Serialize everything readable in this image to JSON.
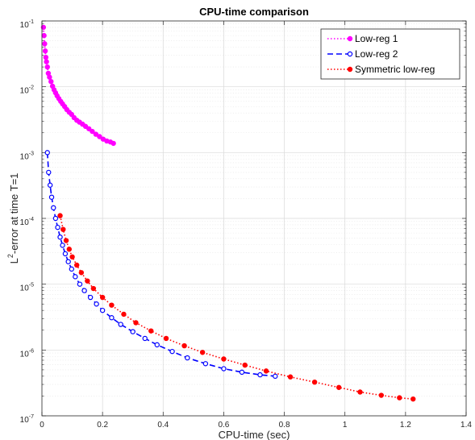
{
  "chart_data": {
    "type": "line",
    "title": "CPU-time comparison",
    "xlabel": "CPU-time (sec)",
    "ylabel_base": "L",
    "ylabel_sup": "2",
    "ylabel_rest": "-error at time T=1",
    "xlim": [
      0,
      1.4
    ],
    "ylim": [
      1e-07,
      0.1
    ],
    "yscale": "log",
    "grid": true,
    "legend_position": "top-right",
    "x_ticks": [
      "0",
      "0.2",
      "0.4",
      "0.6",
      "0.8",
      "1",
      "1.2",
      "1.4"
    ],
    "y_ticks": [
      {
        "base": "10",
        "exp": "-7"
      },
      {
        "base": "10",
        "exp": "-6"
      },
      {
        "base": "10",
        "exp": "-5"
      },
      {
        "base": "10",
        "exp": "-4"
      },
      {
        "base": "10",
        "exp": "-3"
      },
      {
        "base": "10",
        "exp": "-2"
      },
      {
        "base": "10",
        "exp": "-1"
      }
    ],
    "series": [
      {
        "name": "Low-reg 1",
        "color": "#ff00ff",
        "linestyle": "dotted",
        "marker": "circle-filled",
        "x": [
          0.005,
          0.007,
          0.009,
          0.011,
          0.013,
          0.015,
          0.018,
          0.021,
          0.025,
          0.03,
          0.035,
          0.04,
          0.045,
          0.05,
          0.056,
          0.062,
          0.068,
          0.075,
          0.082,
          0.09,
          0.098,
          0.106,
          0.115,
          0.124,
          0.134,
          0.144,
          0.155,
          0.166,
          0.178,
          0.19,
          0.202,
          0.214,
          0.226,
          0.236
        ],
        "y": [
          0.08,
          0.06,
          0.045,
          0.035,
          0.028,
          0.024,
          0.02,
          0.016,
          0.014,
          0.012,
          0.0102,
          0.009,
          0.0081,
          0.0073,
          0.0066,
          0.006,
          0.0055,
          0.005,
          0.0045,
          0.0041,
          0.0038,
          0.0034,
          0.0031,
          0.0029,
          0.0027,
          0.0025,
          0.0023,
          0.0021,
          0.0019,
          0.00175,
          0.0016,
          0.0015,
          0.00145,
          0.00138
        ]
      },
      {
        "name": "Low-reg 2",
        "color": "#0000ff",
        "linestyle": "dashed",
        "marker": "circle-open",
        "x": [
          0.018,
          0.022,
          0.027,
          0.032,
          0.038,
          0.045,
          0.052,
          0.06,
          0.068,
          0.077,
          0.087,
          0.098,
          0.11,
          0.125,
          0.14,
          0.16,
          0.18,
          0.2,
          0.23,
          0.26,
          0.3,
          0.34,
          0.38,
          0.43,
          0.48,
          0.54,
          0.6,
          0.66,
          0.72,
          0.77
        ],
        "y": [
          0.001,
          0.0005,
          0.00032,
          0.00021,
          0.000145,
          0.0001,
          7.3e-05,
          5.2e-05,
          3.9e-05,
          2.9e-05,
          2.2e-05,
          1.7e-05,
          1.3e-05,
          1e-05,
          8e-06,
          6.3e-06,
          5e-06,
          4e-06,
          3.1e-06,
          2.45e-06,
          1.9e-06,
          1.5e-06,
          1.2e-06,
          9.5e-07,
          7.6e-07,
          6.2e-07,
          5.2e-07,
          4.6e-07,
          4.2e-07,
          4e-07
        ]
      },
      {
        "name": "Symmetric low-reg",
        "color": "#ff0000",
        "linestyle": "dotted",
        "marker": "circle-filled",
        "x": [
          0.06,
          0.07,
          0.08,
          0.09,
          0.1,
          0.115,
          0.13,
          0.15,
          0.17,
          0.2,
          0.23,
          0.27,
          0.31,
          0.36,
          0.41,
          0.47,
          0.53,
          0.6,
          0.67,
          0.74,
          0.82,
          0.9,
          0.98,
          1.05,
          1.12,
          1.18,
          1.225
        ],
        "y": [
          0.00011,
          6.8e-05,
          4.6e-05,
          3.4e-05,
          2.6e-05,
          1.95e-05,
          1.5e-05,
          1.12e-05,
          8.6e-06,
          6.3e-06,
          4.8e-06,
          3.5e-06,
          2.6e-06,
          1.95e-06,
          1.5e-06,
          1.16e-06,
          9.2e-07,
          7.3e-07,
          5.9e-07,
          4.8e-07,
          3.9e-07,
          3.25e-07,
          2.7e-07,
          2.3e-07,
          2.05e-07,
          1.88e-07,
          1.8e-07
        ]
      }
    ]
  }
}
